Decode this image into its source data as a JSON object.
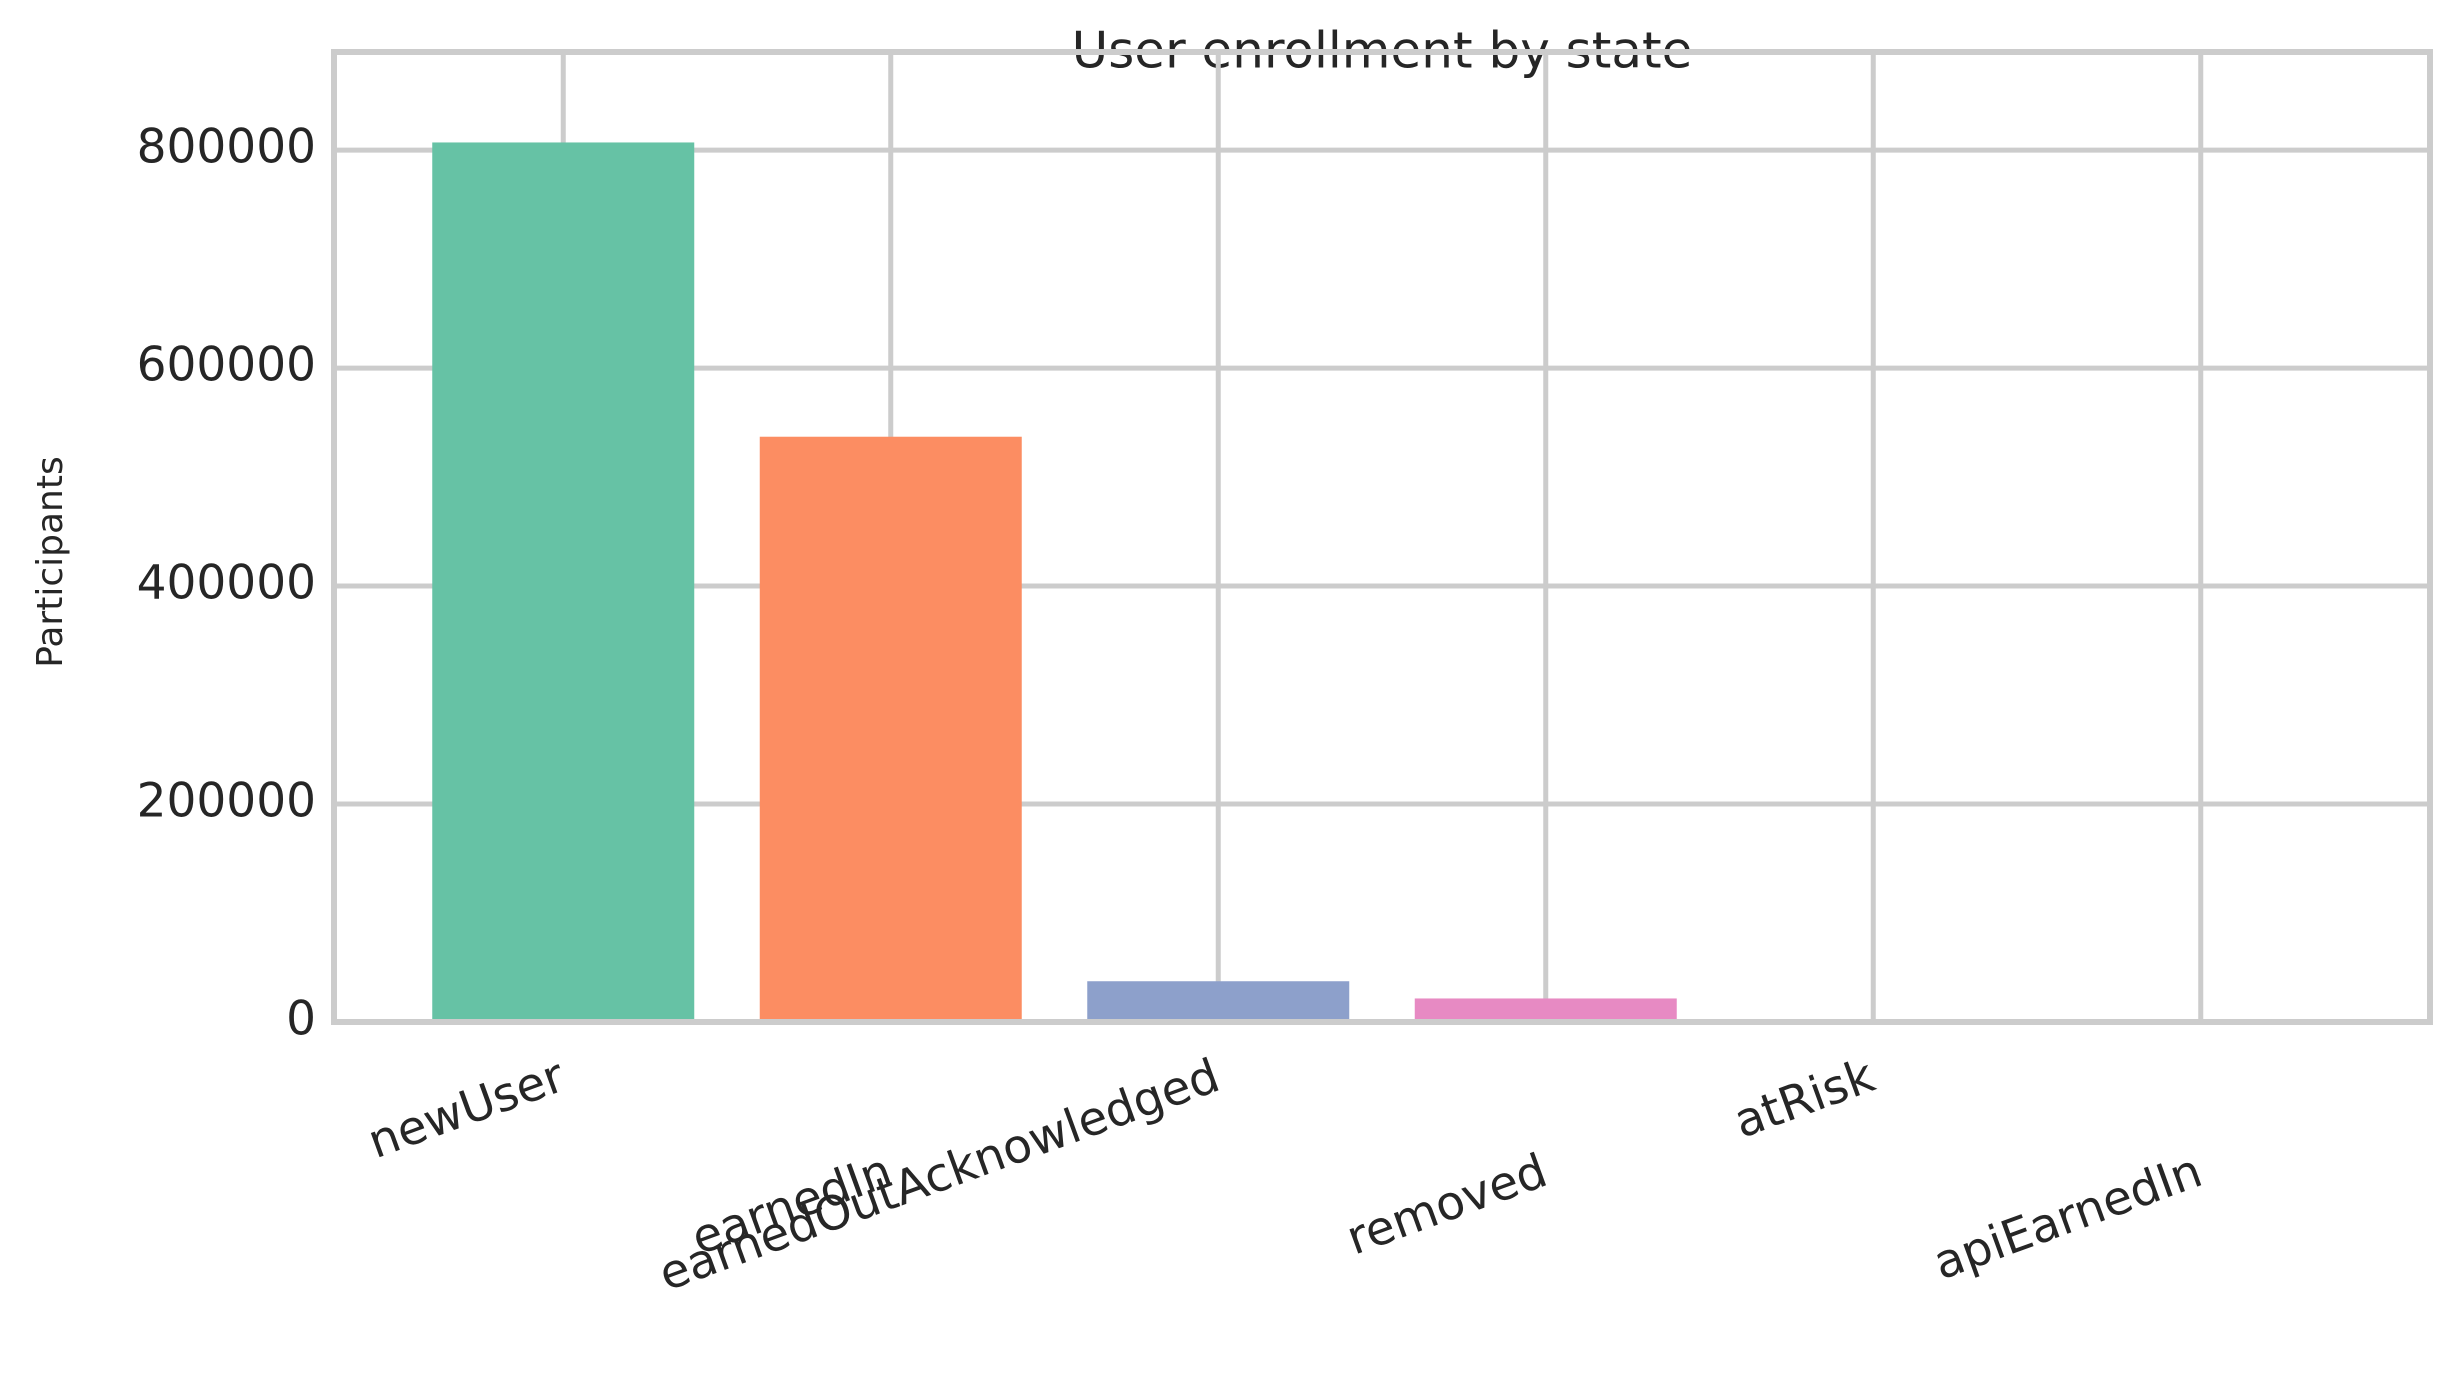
{
  "chart_data": {
    "type": "bar",
    "title": "User enrollment by state",
    "y_label": "Participants",
    "categories": [
      "newUser",
      "earnedIn",
      "earnedOutAcknowledged",
      "removed",
      "atRisk",
      "apiEarnedIn"
    ],
    "values": [
      807000,
      537000,
      37400,
      21600,
      1500,
      500
    ],
    "colors": [
      "#66c2a5",
      "#fc8d62",
      "#8da0cb",
      "#e78ac3",
      "#a6d854",
      "#ffd92f"
    ],
    "ylim": [
      0,
      890000
    ],
    "yticks": [
      0,
      200000,
      400000,
      600000,
      800000
    ],
    "grid": true
  }
}
